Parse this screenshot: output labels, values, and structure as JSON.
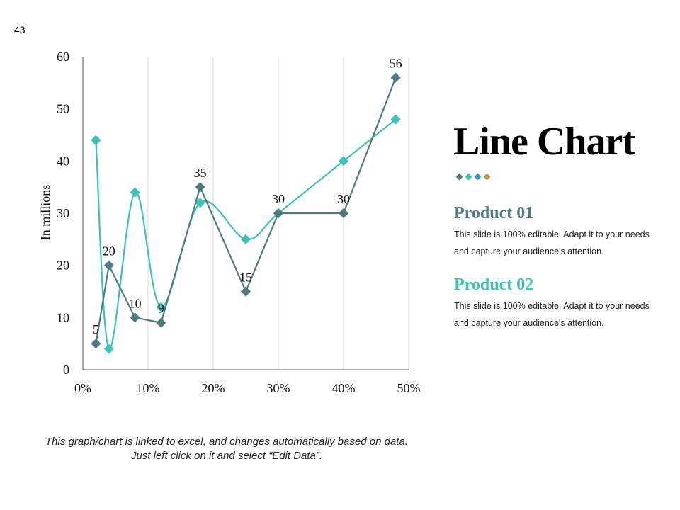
{
  "slide_number": "43",
  "title": "Line Chart",
  "legend_dots": [
    "#4e7c7d",
    "#3cc3b5",
    "#2e9bd6",
    "#b8944d"
  ],
  "products": [
    {
      "heading": "Product 01",
      "color": "#4e7c7d",
      "description": "This slide is 100% editable. Adapt it to your needs and capture your audience's attention."
    },
    {
      "heading": "Product 02",
      "color": "#3cc3b5",
      "description": "This slide is 100% editable. Adapt it to your needs and capture your audience's attention."
    }
  ],
  "footnote": "This graph/chart is linked to excel, and changes automatically based on data. Just left click on it and select “Edit Data”.",
  "chart_data": {
    "type": "line",
    "ylabel": "In millions",
    "xlabel": "",
    "x_ticks": [
      "0%",
      "10%",
      "20%",
      "30%",
      "40%",
      "50%"
    ],
    "y_ticks": [
      0,
      10,
      20,
      30,
      40,
      50,
      60
    ],
    "xlim": [
      0,
      50
    ],
    "ylim": [
      0,
      60
    ],
    "grid": "vertical",
    "series": [
      {
        "color": "#4e7c7d",
        "smooth": false,
        "x": [
          2,
          4,
          8,
          12,
          18,
          25,
          30,
          40,
          48
        ],
        "values": [
          5,
          20,
          10,
          9,
          35,
          15,
          30,
          30,
          56
        ],
        "data_labels": [
          "5",
          "20",
          "10",
          "9",
          "35",
          "15",
          "30",
          "30",
          "56"
        ]
      },
      {
        "color": "#3cc3b5",
        "smooth": true,
        "x": [
          2,
          4,
          8,
          12,
          18,
          25,
          30,
          40,
          48
        ],
        "values": [
          44,
          4,
          34,
          12,
          32,
          25,
          30,
          40,
          48
        ]
      }
    ]
  }
}
